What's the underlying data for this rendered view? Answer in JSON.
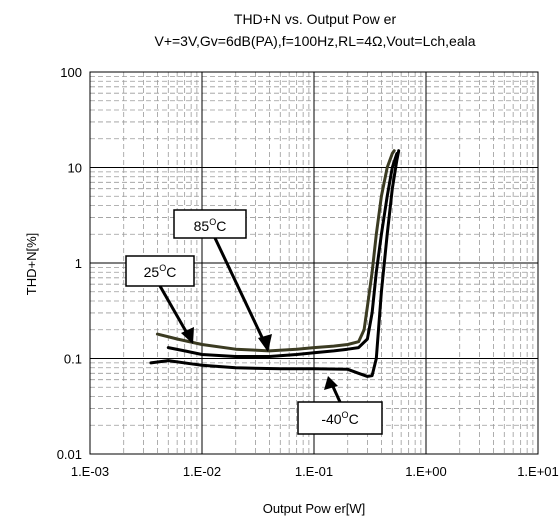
{
  "chart_data": {
    "type": "line",
    "title": "THD+N vs. Output Pow er",
    "subtitle": "V+=3V,Gv=6dB(PA),f=100Hz,RL=4Ω,Vout=Lch,eala",
    "xlabel": "Output Pow er[W]",
    "ylabel": "THD+N[%]",
    "x_scale": "log",
    "y_scale": "log",
    "xlim": [
      0.001,
      10
    ],
    "ylim": [
      0.01,
      100
    ],
    "grid": true,
    "x_tick_labels": [
      "1.E-03",
      "1.E-02",
      "1.E-01",
      "1.E+00",
      "1.E+01"
    ],
    "y_tick_labels": [
      "0.01",
      "0.1",
      "1",
      "10",
      "100"
    ],
    "series": [
      {
        "name": "85°C",
        "color": "#3b3b22",
        "x": [
          0.004,
          0.006,
          0.01,
          0.02,
          0.04,
          0.07,
          0.1,
          0.15,
          0.2,
          0.25,
          0.28,
          0.3,
          0.33,
          0.36,
          0.4,
          0.45,
          0.5,
          0.52
        ],
        "y": [
          0.18,
          0.16,
          0.14,
          0.125,
          0.12,
          0.125,
          0.13,
          0.135,
          0.14,
          0.15,
          0.2,
          0.35,
          0.8,
          2.0,
          5.0,
          10.0,
          14.0,
          15.0
        ]
      },
      {
        "name": "25°C",
        "color": "#000000",
        "x": [
          0.005,
          0.007,
          0.01,
          0.02,
          0.04,
          0.07,
          0.1,
          0.15,
          0.2,
          0.25,
          0.3,
          0.33,
          0.36,
          0.4,
          0.45,
          0.5,
          0.55
        ],
        "y": [
          0.13,
          0.12,
          0.11,
          0.105,
          0.105,
          0.11,
          0.115,
          0.12,
          0.125,
          0.13,
          0.16,
          0.3,
          0.8,
          2.0,
          5.0,
          10.0,
          14.0
        ]
      },
      {
        "name": "-40°C",
        "color": "#000000",
        "x": [
          0.0035,
          0.005,
          0.008,
          0.01,
          0.02,
          0.05,
          0.1,
          0.2,
          0.25,
          0.3,
          0.33,
          0.36,
          0.4,
          0.45,
          0.5,
          0.55,
          0.57
        ],
        "y": [
          0.09,
          0.095,
          0.088,
          0.085,
          0.08,
          0.078,
          0.078,
          0.077,
          0.07,
          0.065,
          0.066,
          0.1,
          0.5,
          2.0,
          6.0,
          12.0,
          15.0
        ]
      }
    ],
    "annotations": [
      {
        "label": "85",
        "unit": "C",
        "sup": "O"
      },
      {
        "label": "25",
        "unit": "C",
        "sup": "O"
      },
      {
        "label": "-40",
        "unit": "C",
        "sup": "O"
      }
    ]
  }
}
